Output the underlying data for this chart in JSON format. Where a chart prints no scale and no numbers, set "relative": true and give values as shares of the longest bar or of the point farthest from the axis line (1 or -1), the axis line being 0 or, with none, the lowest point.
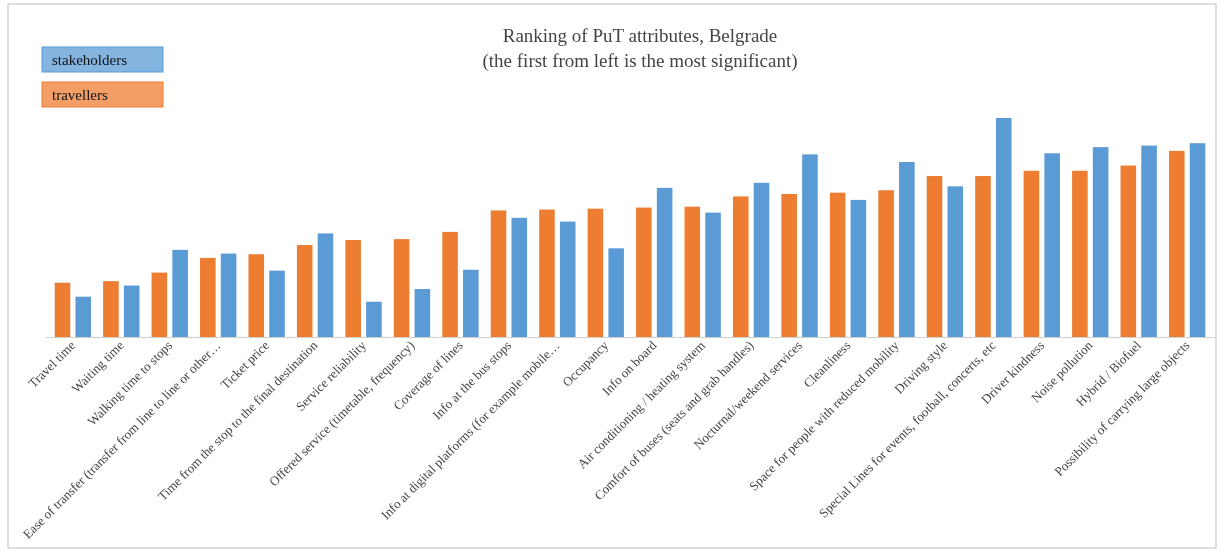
{
  "chart_data": {
    "type": "bar",
    "title": "Ranking of PuT attributes, Belgrade",
    "subtitle": "(the first from left is the most significant)",
    "relative": true,
    "legend": "top left",
    "categories": [
      "Travel time",
      "Waiting time",
      "Walking time to stops",
      "Ease of transfer (transfer from line to line or other…",
      "Ticket price",
      "Time from the stop to the final destination",
      "Service reliability",
      "Offered service (timetable, frequency)",
      "Coverage of lines",
      "Info at the bus stops",
      "Info at digital platforms (for example mobile…",
      "Occupancy",
      "Info on board",
      "Air conditioning / heating system",
      "Comfort of buses (seats and grab handles)",
      "Nocturnal/weekend services",
      "Cleanliness",
      "Space for people with reduced mobility",
      "Driving style",
      "Special Lines for events, football, concerts, etc",
      "Driver kindness",
      "Noise pollution",
      "Hybrid / Biofuel",
      "Possibility of carrying large objects"
    ],
    "series": [
      {
        "name": "travellers",
        "color": "#ed7d31",
        "values": [
          0.248,
          0.255,
          0.294,
          0.361,
          0.378,
          0.42,
          0.443,
          0.447,
          0.48,
          0.578,
          0.582,
          0.586,
          0.591,
          0.595,
          0.642,
          0.653,
          0.659,
          0.67,
          0.735,
          0.735,
          0.759,
          0.759,
          0.783,
          0.85
        ]
      },
      {
        "name": "stakeholders",
        "color": "#5b9bd5",
        "values": [
          0.184,
          0.235,
          0.398,
          0.381,
          0.303,
          0.473,
          0.161,
          0.219,
          0.307,
          0.544,
          0.527,
          0.405,
          0.681,
          0.568,
          0.704,
          0.834,
          0.626,
          0.799,
          0.688,
          1,
          0.839,
          0.867,
          0.874,
          0.885
        ]
      }
    ]
  }
}
